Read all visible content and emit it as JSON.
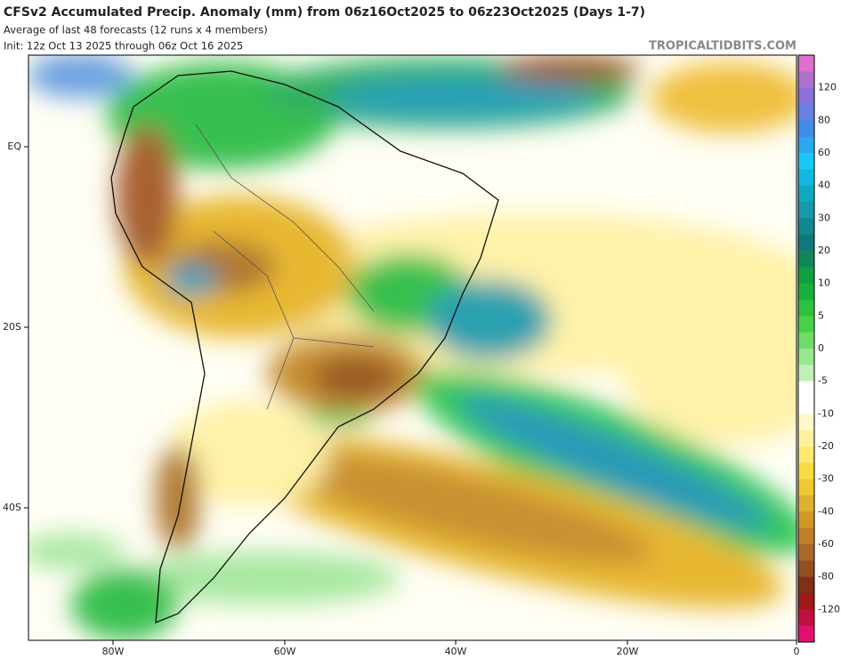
{
  "header": {
    "title": "CFSv2 Accumulated Precip. Anomaly (mm) from 06z16Oct2025 to 06z23Oct2025 (Days 1-7)",
    "subtitle": "Average of last 48 forecasts (12 runs x 4 members)",
    "init": "Init: 12z Oct 13 2025 through 06z Oct 16 2025",
    "watermark": "TROPICALTIDBITS.COM"
  },
  "axes": {
    "lon_labels": [
      "80W",
      "60W",
      "40W",
      "20W",
      "0"
    ],
    "lat_labels": [
      "EQ",
      "20S",
      "40S"
    ]
  },
  "colorbar": {
    "labels": [
      "120",
      "80",
      "60",
      "40",
      "30",
      "20",
      "10",
      "5",
      "0",
      "-5",
      "-10",
      "-20",
      "-30",
      "-40",
      "-60",
      "-80",
      "-120"
    ]
  }
}
